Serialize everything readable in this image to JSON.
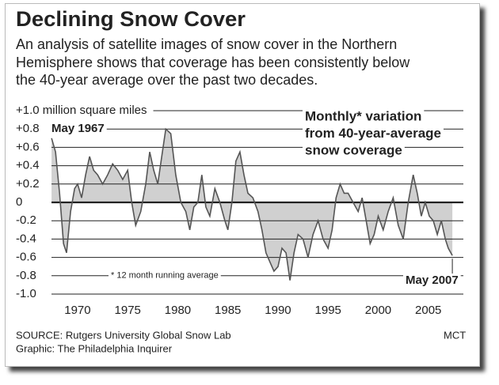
{
  "chart_data": {
    "type": "area",
    "title": "Declining Snow Cover",
    "subtitle": [
      "An analysis of satellite images of snow cover in the Northern",
      "Hemisphere shows that coverage has been consistently below",
      "the 40-year average over the past two decades."
    ],
    "annotations": {
      "legend_note": [
        "Monthly* variation",
        "from 40-year-average",
        "snow coverage"
      ],
      "footnote": "* 12 month running average",
      "start_label": "May 1967",
      "end_label": "May 2007"
    },
    "source": [
      "SOURCE: Rutgers University Global Snow Lab",
      "Graphic: The Philadelphia Inquirer"
    ],
    "credit": "MCT",
    "color": "#d0d0d0",
    "line_color": "#555555",
    "grid": true,
    "x": [
      1967.4,
      1967.8,
      1968.2,
      1968.6,
      1968.9,
      1969.3,
      1969.7,
      1970.0,
      1970.4,
      1970.8,
      1971.2,
      1971.6,
      1972.0,
      1972.5,
      1973.0,
      1973.5,
      1974.0,
      1974.5,
      1975.0,
      1975.4,
      1975.8,
      1976.3,
      1976.8,
      1977.2,
      1977.6,
      1978.0,
      1978.4,
      1978.8,
      1979.3,
      1979.8,
      1980.3,
      1980.8,
      1981.2,
      1981.6,
      1982.0,
      1982.4,
      1982.8,
      1983.2,
      1983.7,
      1984.2,
      1984.7,
      1985.0,
      1985.4,
      1985.8,
      1986.2,
      1986.6,
      1987.0,
      1987.5,
      1988.0,
      1988.4,
      1988.8,
      1989.2,
      1989.6,
      1990.0,
      1990.4,
      1990.8,
      1991.2,
      1991.6,
      1992.0,
      1992.5,
      1993.0,
      1993.5,
      1994.0,
      1994.5,
      1995.0,
      1995.4,
      1995.8,
      1996.2,
      1996.6,
      1997.0,
      1997.5,
      1998.0,
      1998.4,
      1998.8,
      1999.2,
      1999.6,
      2000.0,
      2000.5,
      2001.0,
      2001.5,
      2002.0,
      2002.5,
      2003.0,
      2003.5,
      2003.9,
      2004.3,
      2004.7,
      2005.1,
      2005.5,
      2005.9,
      2006.3,
      2006.7,
      2007.0,
      2007.4
    ],
    "values": [
      0.7,
      0.55,
      0.1,
      -0.45,
      -0.55,
      -0.1,
      0.15,
      0.2,
      0.05,
      0.3,
      0.5,
      0.35,
      0.3,
      0.2,
      0.3,
      0.42,
      0.35,
      0.25,
      0.35,
      0.0,
      -0.25,
      -0.1,
      0.2,
      0.55,
      0.35,
      0.2,
      0.5,
      0.8,
      0.75,
      0.3,
      0.0,
      -0.1,
      -0.3,
      -0.05,
      0.0,
      0.3,
      -0.05,
      -0.15,
      0.15,
      0.0,
      -0.2,
      -0.3,
      0.0,
      0.45,
      0.55,
      0.3,
      0.1,
      0.05,
      -0.1,
      -0.3,
      -0.55,
      -0.65,
      -0.75,
      -0.7,
      -0.5,
      -0.55,
      -0.85,
      -0.55,
      -0.35,
      -0.4,
      -0.6,
      -0.35,
      -0.2,
      -0.4,
      -0.5,
      -0.3,
      0.05,
      0.2,
      0.1,
      0.1,
      0.0,
      -0.1,
      0.05,
      -0.2,
      -0.45,
      -0.35,
      -0.15,
      -0.3,
      -0.1,
      0.05,
      -0.25,
      -0.4,
      0.0,
      0.3,
      0.1,
      -0.15,
      0.0,
      -0.15,
      -0.2,
      -0.35,
      -0.2,
      -0.4,
      -0.5,
      -0.58
    ],
    "xlim": [
      1967,
      2008.5
    ],
    "xticks": [
      1970,
      1975,
      1980,
      1985,
      1990,
      1995,
      2000,
      2005
    ],
    "ylim": [
      -1.0,
      1.0
    ],
    "yticks": [
      {
        "value": 1.0,
        "label": "+1.0 million square miles"
      },
      {
        "value": 0.8,
        "label": "+0.8"
      },
      {
        "value": 0.6,
        "label": "+0.6"
      },
      {
        "value": 0.4,
        "label": "+0.4"
      },
      {
        "value": 0.2,
        "label": "+0.2"
      },
      0,
      {
        "value": -0.2,
        "label": "-0.2"
      },
      {
        "value": -0.4,
        "label": "-0.4"
      },
      {
        "value": -0.6,
        "label": "-0.6"
      },
      {
        "value": -0.8,
        "label": "-0.8"
      },
      {
        "value": -1.0,
        "label": "-1.0"
      }
    ]
  }
}
